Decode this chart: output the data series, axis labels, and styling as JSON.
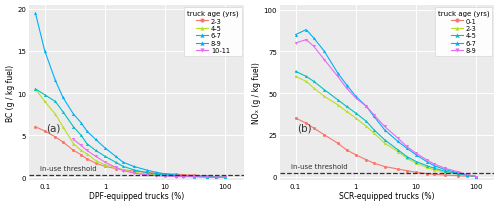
{
  "panel_a": {
    "title": "(a)",
    "xlabel": "DPF-equipped trucks (%)",
    "ylabel": "BC (g / kg fuel)",
    "ylim": [
      -0.3,
      20.5
    ],
    "yticks": [
      0,
      5,
      10,
      15,
      20
    ],
    "ytick_labels": [
      "0",
      "5",
      "10",
      "15",
      "20"
    ],
    "threshold": 0.25,
    "threshold_label": "in-use threshold",
    "legend_title": "truck age (yrs)",
    "series": [
      {
        "label": "2-3",
        "color": "#F8766D",
        "marker": "o",
        "x": [
          0.07,
          0.1,
          0.15,
          0.2,
          0.3,
          0.4,
          0.5,
          0.7,
          1.0,
          1.5,
          2.0,
          3.0,
          5.0,
          7.0,
          10.0,
          15.0,
          20.0,
          30.0,
          50.0,
          70.0,
          100.0
        ],
        "y": [
          6.0,
          5.5,
          4.8,
          4.2,
          3.2,
          2.7,
          2.2,
          1.7,
          1.3,
          1.05,
          0.9,
          0.75,
          0.6,
          0.5,
          0.45,
          0.38,
          0.32,
          0.25,
          0.18,
          0.1,
          0.0
        ]
      },
      {
        "label": "4-5",
        "color": "#B8DE29",
        "marker": "^",
        "x": [
          0.07,
          0.1,
          0.15,
          0.2,
          0.3,
          0.4,
          0.5,
          0.7,
          1.0,
          1.5,
          2.0,
          3.0,
          5.0,
          7.0,
          10.0,
          15.0,
          20.0,
          30.0,
          50.0,
          70.0,
          100.0
        ],
        "y": [
          10.5,
          9.0,
          7.5,
          6.0,
          4.0,
          3.2,
          2.8,
          2.0,
          1.5,
          1.2,
          0.9,
          0.6,
          0.4,
          0.3,
          0.22,
          0.18,
          0.15,
          0.12,
          0.08,
          0.04,
          0.0
        ]
      },
      {
        "label": "6-7",
        "color": "#00BFC4",
        "marker": "^",
        "x": [
          0.07,
          0.1,
          0.15,
          0.2,
          0.3,
          0.4,
          0.5,
          0.7,
          1.0,
          1.5,
          2.0,
          3.0,
          5.0,
          7.0,
          10.0,
          15.0,
          20.0,
          30.0,
          50.0,
          70.0,
          100.0
        ],
        "y": [
          10.5,
          9.8,
          9.0,
          7.8,
          6.0,
          5.0,
          4.0,
          3.2,
          2.5,
          1.8,
          1.3,
          0.9,
          0.55,
          0.38,
          0.28,
          0.2,
          0.15,
          0.1,
          0.07,
          0.03,
          0.0
        ]
      },
      {
        "label": "8-9",
        "color": "#00B0F6",
        "marker": "^",
        "x": [
          0.07,
          0.1,
          0.15,
          0.2,
          0.3,
          0.4,
          0.5,
          0.7,
          1.0,
          1.5,
          2.0,
          3.0,
          5.0,
          7.0,
          10.0,
          15.0,
          20.0,
          30.0,
          50.0,
          70.0,
          100.0
        ],
        "y": [
          19.5,
          15.0,
          11.5,
          9.5,
          7.5,
          6.5,
          5.5,
          4.5,
          3.5,
          2.5,
          1.8,
          1.3,
          0.85,
          0.6,
          0.4,
          0.28,
          0.18,
          0.12,
          0.07,
          0.02,
          0.0
        ]
      },
      {
        "label": "10-11",
        "color": "#E76BF3",
        "marker": "v",
        "x": [
          0.3,
          0.4,
          0.5,
          0.7,
          1.0,
          1.5,
          2.0,
          3.0,
          5.0,
          7.0,
          10.0,
          15.0,
          20.0,
          30.0,
          50.0,
          70.0,
          100.0
        ],
        "y": [
          4.5,
          3.8,
          3.2,
          2.5,
          1.8,
          1.2,
          0.8,
          0.5,
          0.28,
          0.2,
          0.15,
          0.1,
          0.08,
          0.06,
          0.04,
          0.02,
          0.0
        ]
      }
    ]
  },
  "panel_b": {
    "title": "(b)",
    "xlabel": "SCR-equipped trucks (%)",
    "ylabel": "NOₓ (g / kg fuel)",
    "ylim": [
      -2,
      103
    ],
    "yticks": [
      0,
      25,
      50,
      75,
      100
    ],
    "ytick_labels": [
      "0",
      "25",
      "50",
      "75",
      "100"
    ],
    "threshold": 2.0,
    "threshold_label": "in-use threshold",
    "legend_title": "truck age (yrs)",
    "series": [
      {
        "label": "0-1",
        "color": "#F8766D",
        "marker": "o",
        "x": [
          0.1,
          0.15,
          0.2,
          0.3,
          0.5,
          0.7,
          1.0,
          1.5,
          2.0,
          3.0,
          5.0,
          7.0,
          10.0,
          15.0,
          20.0,
          30.0,
          50.0,
          70.0,
          100.0
        ],
        "y": [
          35.0,
          32.0,
          29.0,
          25.0,
          20.0,
          16.0,
          13.0,
          10.0,
          8.0,
          6.0,
          4.5,
          3.5,
          2.5,
          1.8,
          1.3,
          0.9,
          0.5,
          0.2,
          0.0
        ]
      },
      {
        "label": "2-3",
        "color": "#B8DE29",
        "marker": "^",
        "x": [
          0.1,
          0.15,
          0.2,
          0.3,
          0.5,
          0.7,
          1.0,
          1.5,
          2.0,
          3.0,
          5.0,
          7.0,
          10.0,
          15.0,
          20.0,
          30.0,
          50.0,
          70.0,
          100.0
        ],
        "y": [
          60.0,
          57.0,
          53.0,
          48.0,
          43.0,
          39.0,
          35.0,
          30.0,
          26.0,
          20.0,
          15.0,
          11.0,
          8.0,
          5.5,
          4.0,
          2.5,
          1.5,
          0.7,
          0.0
        ]
      },
      {
        "label": "4-5",
        "color": "#00BFC4",
        "marker": "^",
        "x": [
          0.1,
          0.15,
          0.2,
          0.3,
          0.5,
          0.7,
          1.0,
          1.5,
          2.0,
          3.0,
          5.0,
          7.0,
          10.0,
          15.0,
          20.0,
          30.0,
          50.0,
          70.0,
          100.0
        ],
        "y": [
          63.0,
          60.0,
          57.0,
          52.0,
          46.0,
          42.0,
          38.0,
          33.0,
          28.0,
          22.0,
          16.0,
          12.0,
          9.0,
          6.5,
          5.0,
          3.2,
          1.8,
          0.8,
          0.0
        ]
      },
      {
        "label": "6-7",
        "color": "#00B0F6",
        "marker": "^",
        "x": [
          0.1,
          0.15,
          0.2,
          0.3,
          0.5,
          0.7,
          1.0,
          1.5,
          2.0,
          3.0,
          5.0,
          7.0,
          10.0,
          15.0,
          20.0,
          30.0,
          50.0,
          70.0,
          100.0
        ],
        "y": [
          85.0,
          88.0,
          83.0,
          75.0,
          62.0,
          55.0,
          48.0,
          42.0,
          36.0,
          28.0,
          21.0,
          17.0,
          13.0,
          9.0,
          6.5,
          4.2,
          2.2,
          1.0,
          0.0
        ]
      },
      {
        "label": "8-9",
        "color": "#E76BF3",
        "marker": "v",
        "x": [
          0.1,
          0.15,
          0.2,
          0.3,
          0.5,
          0.7,
          1.0,
          1.5,
          2.0,
          3.0,
          5.0,
          7.0,
          10.0,
          15.0,
          20.0,
          30.0,
          50.0,
          70.0,
          100.0
        ],
        "y": [
          80.0,
          82.0,
          78.0,
          70.0,
          60.0,
          53.0,
          47.0,
          42.0,
          37.0,
          30.0,
          23.0,
          18.0,
          14.0,
          10.0,
          7.5,
          5.0,
          2.8,
          1.2,
          0.0
        ]
      }
    ]
  },
  "bg_color": "#EBEBEB",
  "grid_color": "#FFFFFF",
  "fig_bg": "#FFFFFF",
  "panel_border_color": "#AAAAAA"
}
